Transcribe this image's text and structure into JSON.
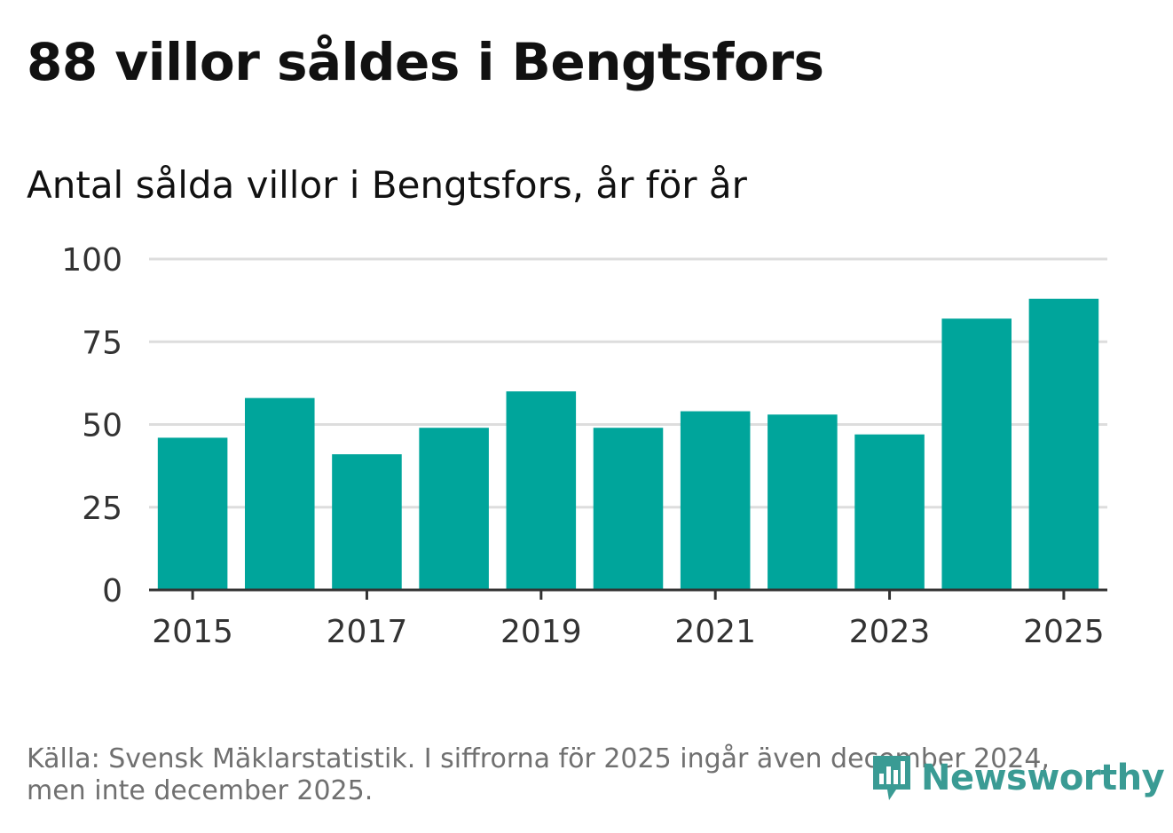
{
  "header": {
    "title": "88 villor såldes i Bengtsfors",
    "subtitle": "Antal sålda villor i Bengtsfors, år för år"
  },
  "footer": {
    "source_line1": "Källa: Svensk Mäklarstatistik. I siffrorna för 2025 ingår även december 2024,",
    "source_line2": "men inte december 2025."
  },
  "logo": {
    "text": "Newsworthy",
    "icon": "newsworthy-logo-icon"
  },
  "colors": {
    "bar": "#00a59b",
    "grid": "#dddddd",
    "axis": "#333333",
    "logo": "#3a9b94"
  },
  "chart_data": {
    "type": "bar",
    "title": "88 villor såldes i Bengtsfors",
    "subtitle": "Antal sålda villor i Bengtsfors, år för år",
    "categories": [
      "2015",
      "2016",
      "2017",
      "2018",
      "2019",
      "2020",
      "2021",
      "2022",
      "2023",
      "2024",
      "2025"
    ],
    "values": [
      46,
      58,
      41,
      49,
      60,
      49,
      54,
      53,
      47,
      82,
      88
    ],
    "x_tick_labels": [
      "2015",
      "2017",
      "2019",
      "2021",
      "2023",
      "2025"
    ],
    "y_ticks": [
      0,
      25,
      50,
      75,
      100
    ],
    "ylim": [
      0,
      100
    ],
    "xlabel": "",
    "ylabel": "",
    "grid": true
  }
}
